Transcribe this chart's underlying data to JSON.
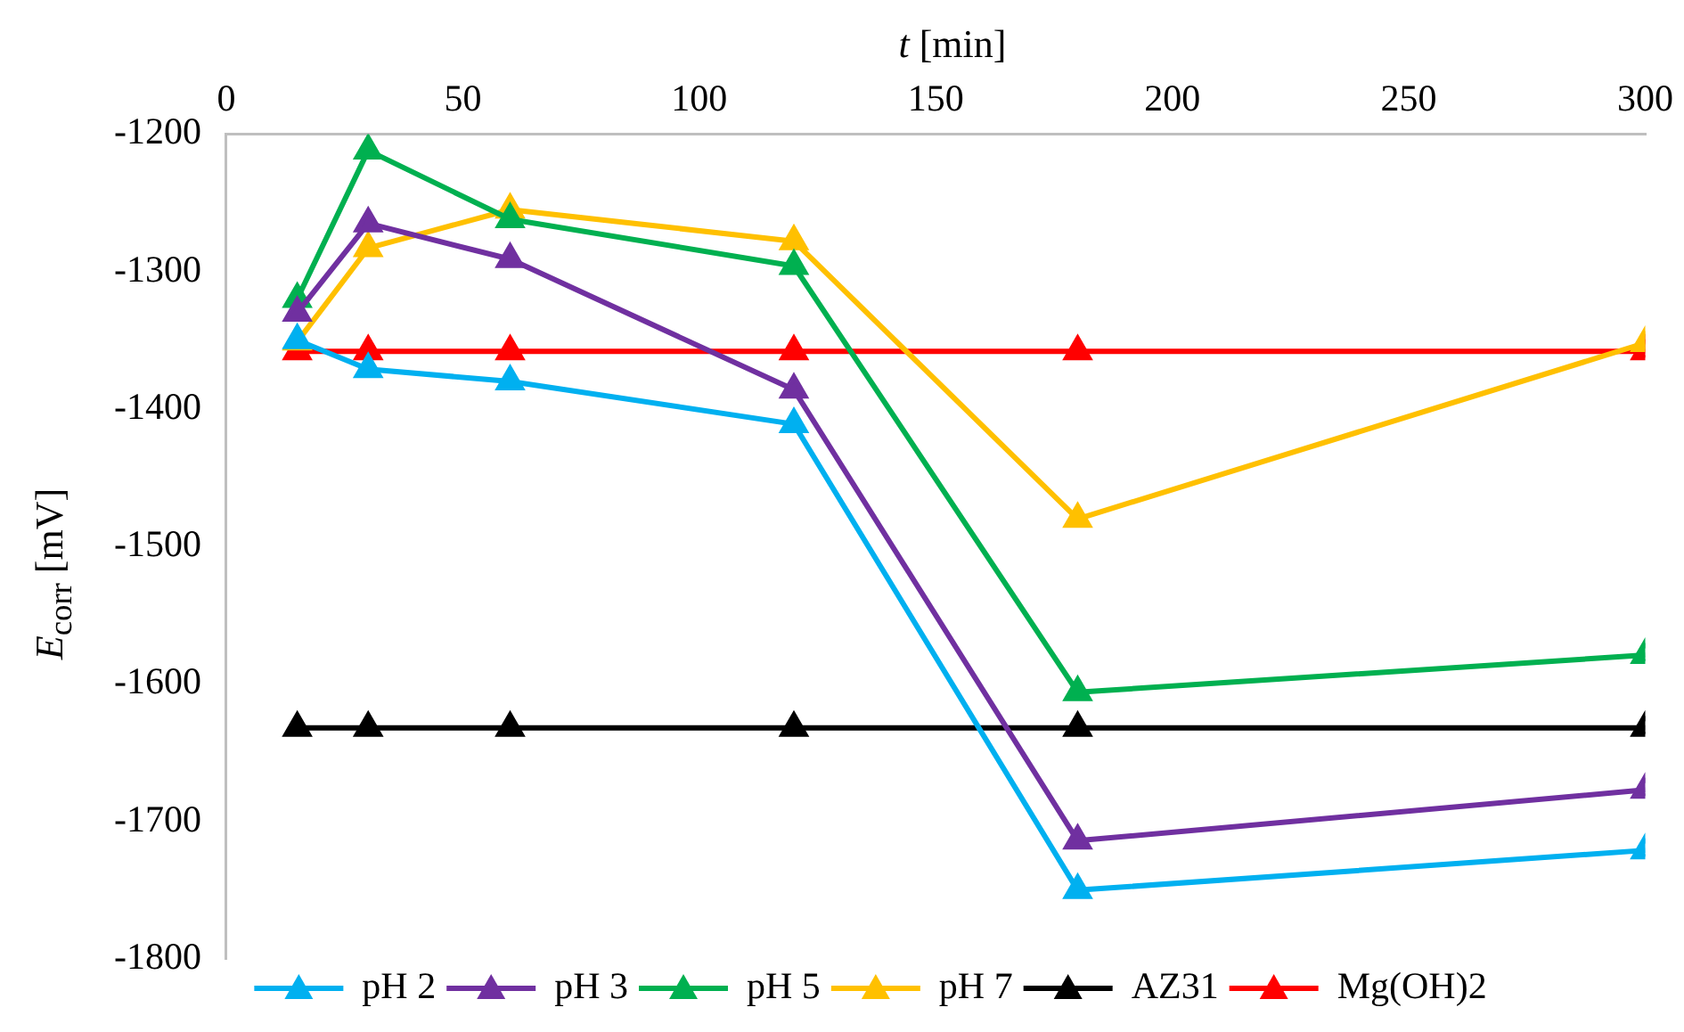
{
  "chart_data": {
    "type": "line",
    "xlabel": "t [min]",
    "ylabel": "E$_{corr}$ [mV]",
    "x": [
      15,
      30,
      60,
      120,
      180,
      300
    ],
    "xlim": [
      0,
      300
    ],
    "xticks": [
      0,
      50,
      100,
      150,
      200,
      250,
      300
    ],
    "ylim": [
      -1800,
      -1200
    ],
    "yticks": [
      -1800,
      -1700,
      -1600,
      -1500,
      -1400,
      -1300,
      -1200
    ],
    "grid": false,
    "legend": "bottom",
    "marker": "triangle",
    "line_style": "solid",
    "series": [
      {
        "name": "pH 2",
        "color": "#00b0f0",
        "values": [
          -1350,
          -1371,
          -1380,
          -1411,
          -1750,
          -1721
        ]
      },
      {
        "name": "pH 3",
        "color": "#7030a0",
        "values": [
          -1330,
          -1265,
          -1291,
          -1386,
          -1714,
          -1677
        ]
      },
      {
        "name": "pH 5",
        "color": "#00b050",
        "values": [
          -1320,
          -1212,
          -1262,
          -1296,
          -1606,
          -1579
        ]
      },
      {
        "name": "pH 7",
        "color": "#ffc000",
        "values": [
          -1351,
          -1283,
          -1255,
          -1278,
          -1480,
          -1352
        ]
      },
      {
        "name": "AZ31",
        "color": "#000000",
        "values": [
          -1632,
          -1632,
          -1632,
          -1632,
          -1632,
          -1632
        ]
      },
      {
        "name": "Mg(OH)2",
        "color": "#ff0000",
        "values": [
          -1358,
          -1358,
          -1358,
          -1358,
          -1358,
          -1358
        ]
      }
    ]
  }
}
